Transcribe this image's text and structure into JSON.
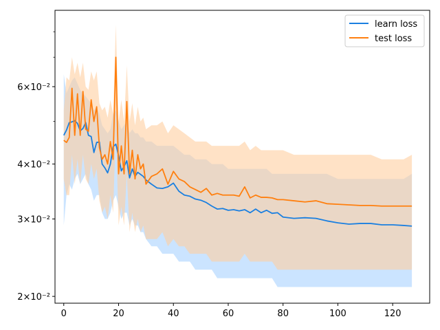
{
  "chart_data": {
    "type": "line",
    "yscale": "log",
    "xlim": [
      -3.2,
      133.5
    ],
    "ylim": [
      0.0193,
      0.0895
    ],
    "grid": false,
    "legend_position": "top-right",
    "x_ticks": [
      0,
      20,
      40,
      60,
      80,
      100,
      120
    ],
    "y_ticks": [
      {
        "value": 0.02,
        "label": "2×10⁻²"
      },
      {
        "value": 0.03,
        "label": "3×10⁻²"
      },
      {
        "value": 0.04,
        "label": "4×10⁻²"
      },
      {
        "value": 0.06,
        "label": "6×10⁻²"
      }
    ],
    "y_minor_ticks": [
      0.05,
      0.07,
      0.08
    ],
    "series": [
      {
        "name": "learn loss",
        "color": "#1f77b4",
        "line_color": "#1a7fe0",
        "band_color": "#8cc4ff",
        "x": [
          0,
          1,
          2,
          3,
          4,
          5,
          6,
          7,
          8,
          9,
          10,
          11,
          12,
          13,
          14,
          15,
          16,
          17,
          18,
          19,
          20,
          21,
          22,
          23,
          24,
          25,
          26,
          27,
          28,
          29,
          30,
          32,
          34,
          36,
          38,
          40,
          42,
          44,
          46,
          48,
          50,
          52,
          54,
          56,
          58,
          60,
          62,
          64,
          66,
          68,
          70,
          72,
          74,
          76,
          78,
          80,
          84,
          88,
          92,
          96,
          100,
          104,
          108,
          112,
          116,
          120,
          124,
          127
        ],
        "values": [
          0.0465,
          0.0478,
          0.0497,
          0.0499,
          0.0502,
          0.0495,
          0.0476,
          0.0482,
          0.0497,
          0.0465,
          0.0462,
          0.0425,
          0.0448,
          0.0449,
          0.04,
          0.0392,
          0.0382,
          0.04,
          0.0438,
          0.0444,
          0.0418,
          0.0386,
          0.0395,
          0.0407,
          0.0372,
          0.039,
          0.0375,
          0.0383,
          0.0379,
          0.0375,
          0.0368,
          0.036,
          0.0353,
          0.0352,
          0.0355,
          0.0362,
          0.0347,
          0.034,
          0.0338,
          0.0333,
          0.0331,
          0.0327,
          0.0321,
          0.0316,
          0.0317,
          0.0314,
          0.0315,
          0.0313,
          0.0315,
          0.031,
          0.0316,
          0.031,
          0.0314,
          0.0309,
          0.031,
          0.0303,
          0.0301,
          0.0302,
          0.0301,
          0.0297,
          0.0294,
          0.0292,
          0.0293,
          0.0293,
          0.0291,
          0.0291,
          0.029,
          0.0289
        ],
        "upper": [
          0.064,
          0.058,
          0.06,
          0.062,
          0.063,
          0.061,
          0.059,
          0.058,
          0.057,
          0.056,
          0.055,
          0.053,
          0.054,
          0.052,
          0.049,
          0.048,
          0.047,
          0.048,
          0.052,
          0.053,
          0.05,
          0.048,
          0.049,
          0.05,
          0.047,
          0.048,
          0.047,
          0.047,
          0.046,
          0.046,
          0.045,
          0.045,
          0.044,
          0.044,
          0.044,
          0.044,
          0.043,
          0.042,
          0.042,
          0.041,
          0.041,
          0.041,
          0.04,
          0.04,
          0.04,
          0.039,
          0.039,
          0.039,
          0.039,
          0.039,
          0.039,
          0.039,
          0.039,
          0.038,
          0.038,
          0.038,
          0.038,
          0.038,
          0.038,
          0.038,
          0.037,
          0.037,
          0.037,
          0.037,
          0.037,
          0.037,
          0.037,
          0.038
        ],
        "lower": [
          0.029,
          0.034,
          0.036,
          0.035,
          0.037,
          0.038,
          0.036,
          0.037,
          0.038,
          0.036,
          0.035,
          0.033,
          0.034,
          0.034,
          0.031,
          0.03,
          0.03,
          0.031,
          0.033,
          0.034,
          0.032,
          0.03,
          0.031,
          0.031,
          0.029,
          0.03,
          0.029,
          0.029,
          0.028,
          0.028,
          0.027,
          0.026,
          0.026,
          0.025,
          0.025,
          0.025,
          0.024,
          0.024,
          0.024,
          0.023,
          0.023,
          0.023,
          0.023,
          0.022,
          0.022,
          0.022,
          0.022,
          0.022,
          0.022,
          0.022,
          0.022,
          0.022,
          0.022,
          0.022,
          0.021,
          0.021,
          0.021,
          0.021,
          0.021,
          0.021,
          0.021,
          0.021,
          0.021,
          0.021,
          0.021,
          0.021,
          0.021,
          0.021
        ]
      },
      {
        "name": "test loss",
        "color": "#ff7f0e",
        "line_color": "#ff7f0e",
        "band_color": "#ffcfa0",
        "x": [
          0,
          1,
          2,
          3,
          4,
          5,
          6,
          7,
          8,
          9,
          10,
          11,
          12,
          13,
          14,
          15,
          16,
          17,
          18,
          19,
          20,
          21,
          22,
          23,
          24,
          25,
          26,
          27,
          28,
          29,
          30,
          32,
          34,
          36,
          38,
          40,
          42,
          44,
          46,
          48,
          50,
          52,
          54,
          56,
          58,
          60,
          62,
          64,
          66,
          68,
          70,
          72,
          74,
          76,
          78,
          80,
          84,
          88,
          92,
          96,
          100,
          104,
          108,
          112,
          116,
          120,
          124,
          127
        ],
        "values": [
          0.0453,
          0.0448,
          0.046,
          0.0595,
          0.0465,
          0.0578,
          0.0465,
          0.0585,
          0.048,
          0.0475,
          0.056,
          0.05,
          0.054,
          0.0436,
          0.041,
          0.042,
          0.04,
          0.045,
          0.041,
          0.07,
          0.038,
          0.044,
          0.038,
          0.0555,
          0.038,
          0.043,
          0.037,
          0.042,
          0.039,
          0.04,
          0.036,
          0.0375,
          0.038,
          0.039,
          0.036,
          0.0385,
          0.037,
          0.0365,
          0.0355,
          0.035,
          0.0345,
          0.0352,
          0.034,
          0.0343,
          0.034,
          0.034,
          0.034,
          0.0338,
          0.0355,
          0.0335,
          0.034,
          0.0336,
          0.0336,
          0.0335,
          0.0332,
          0.0332,
          0.033,
          0.0328,
          0.033,
          0.0325,
          0.0324,
          0.0323,
          0.0322,
          0.0322,
          0.0321,
          0.0321,
          0.0321,
          0.0321
        ],
        "upper": [
          0.053,
          0.063,
          0.062,
          0.07,
          0.064,
          0.068,
          0.063,
          0.068,
          0.06,
          0.059,
          0.065,
          0.062,
          0.065,
          0.055,
          0.053,
          0.054,
          0.051,
          0.056,
          0.052,
          0.083,
          0.05,
          0.056,
          0.05,
          0.067,
          0.05,
          0.055,
          0.049,
          0.054,
          0.05,
          0.051,
          0.048,
          0.049,
          0.049,
          0.05,
          0.047,
          0.049,
          0.048,
          0.047,
          0.046,
          0.045,
          0.045,
          0.045,
          0.044,
          0.044,
          0.044,
          0.044,
          0.044,
          0.044,
          0.045,
          0.043,
          0.044,
          0.043,
          0.043,
          0.043,
          0.043,
          0.043,
          0.042,
          0.042,
          0.042,
          0.042,
          0.042,
          0.042,
          0.042,
          0.042,
          0.041,
          0.041,
          0.041,
          0.042
        ],
        "lower": [
          0.037,
          0.034,
          0.034,
          0.042,
          0.036,
          0.041,
          0.036,
          0.042,
          0.037,
          0.036,
          0.04,
          0.037,
          0.039,
          0.033,
          0.031,
          0.032,
          0.03,
          0.034,
          0.031,
          0.048,
          0.029,
          0.032,
          0.029,
          0.038,
          0.028,
          0.031,
          0.028,
          0.03,
          0.028,
          0.029,
          0.027,
          0.027,
          0.027,
          0.028,
          0.026,
          0.027,
          0.026,
          0.026,
          0.025,
          0.025,
          0.025,
          0.025,
          0.024,
          0.024,
          0.024,
          0.024,
          0.024,
          0.024,
          0.025,
          0.024,
          0.024,
          0.024,
          0.024,
          0.024,
          0.023,
          0.023,
          0.023,
          0.023,
          0.023,
          0.023,
          0.023,
          0.023,
          0.023,
          0.023,
          0.023,
          0.023,
          0.023,
          0.023
        ]
      }
    ]
  }
}
